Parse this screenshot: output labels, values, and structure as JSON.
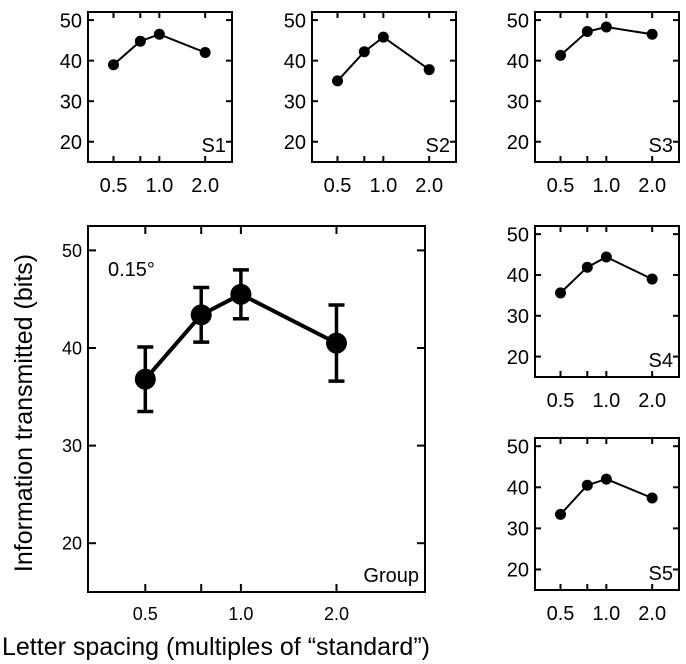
{
  "figure": {
    "ylabel": "Information transmitted (bits)",
    "xlabel": "Letter spacing (multiples of “standard”)"
  },
  "chart_data": [
    {
      "id": "group",
      "type": "line",
      "label": "Group",
      "annotation": "0.15°",
      "x": [
        0.5,
        0.75,
        1.0,
        2.0
      ],
      "xtick_values": [
        0.5,
        1.0,
        2.0
      ],
      "xtick_labels": [
        "0.5",
        "1.0",
        "2.0"
      ],
      "y": [
        36.8,
        43.4,
        45.5,
        40.5
      ],
      "yerr": [
        3.3,
        2.8,
        2.5,
        3.9
      ],
      "yticks": [
        20,
        30,
        40,
        50
      ],
      "ylim": [
        15,
        52.5
      ],
      "xscale": "log"
    },
    {
      "id": "s1",
      "type": "line",
      "label": "S1",
      "x": [
        0.5,
        0.75,
        1.0,
        2.0
      ],
      "y": [
        39.0,
        44.8,
        46.5,
        42.0
      ],
      "xtick_values": [
        0.5,
        1.0,
        2.0
      ],
      "xtick_labels": [
        "0.5",
        "1.0",
        "2.0"
      ],
      "yticks": [
        20,
        30,
        40,
        50
      ],
      "ylim": [
        15,
        52
      ]
    },
    {
      "id": "s2",
      "type": "line",
      "label": "S2",
      "x": [
        0.5,
        0.75,
        1.0,
        2.0
      ],
      "y": [
        35.0,
        42.2,
        45.8,
        37.8
      ],
      "xtick_values": [
        0.5,
        1.0,
        2.0
      ],
      "xtick_labels": [
        "0.5",
        "1.0",
        "2.0"
      ],
      "yticks": [
        20,
        30,
        40,
        50
      ],
      "ylim": [
        15,
        52
      ]
    },
    {
      "id": "s3",
      "type": "line",
      "label": "S3",
      "x": [
        0.5,
        0.75,
        1.0,
        2.0
      ],
      "y": [
        41.3,
        47.2,
        48.3,
        46.5
      ],
      "xtick_values": [
        0.5,
        1.0,
        2.0
      ],
      "xtick_labels": [
        "0.5",
        "1.0",
        "2.0"
      ],
      "yticks": [
        20,
        30,
        40,
        50
      ],
      "ylim": [
        15,
        52
      ]
    },
    {
      "id": "s4",
      "type": "line",
      "label": "S4",
      "x": [
        0.5,
        0.75,
        1.0,
        2.0
      ],
      "y": [
        35.6,
        41.9,
        44.4,
        39.0
      ],
      "xtick_values": [
        0.5,
        1.0,
        2.0
      ],
      "xtick_labels": [
        "0.5",
        "1.0",
        "2.0"
      ],
      "yticks": [
        20,
        30,
        40,
        50
      ],
      "ylim": [
        15,
        52
      ]
    },
    {
      "id": "s5",
      "type": "line",
      "label": "S5",
      "x": [
        0.5,
        0.75,
        1.0,
        2.0
      ],
      "y": [
        33.4,
        40.5,
        42.0,
        37.4
      ],
      "xtick_values": [
        0.5,
        1.0,
        2.0
      ],
      "xtick_labels": [
        "0.5",
        "1.0",
        "2.0"
      ],
      "yticks": [
        20,
        30,
        40,
        50
      ],
      "ylim": [
        15,
        52
      ]
    }
  ]
}
